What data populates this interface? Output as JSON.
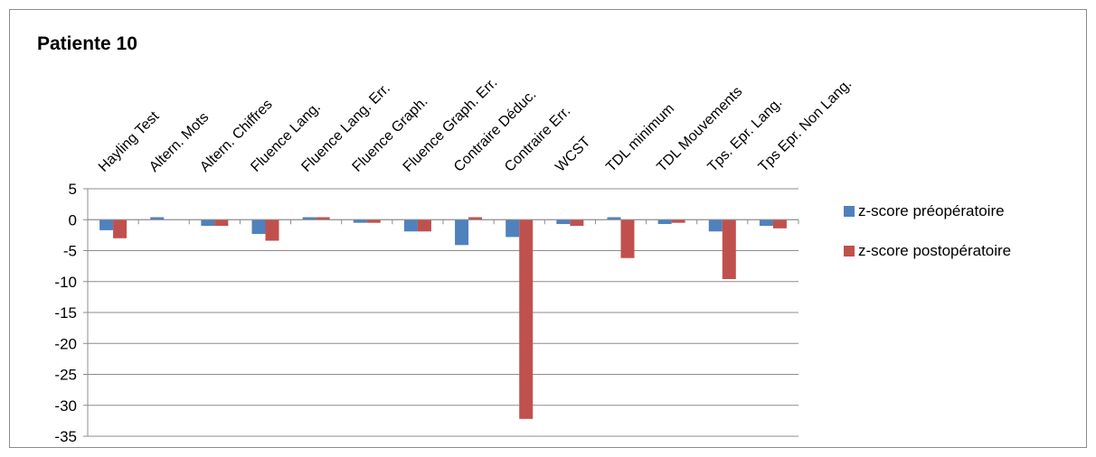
{
  "chart_data": {
    "type": "bar",
    "title": "Patiente 10",
    "xlabel": "",
    "ylabel": "",
    "ylim": [
      -35,
      5
    ],
    "yticks": [
      5,
      0,
      -5,
      -10,
      -15,
      -20,
      -25,
      -30,
      -35
    ],
    "grid": true,
    "legend_position": "right",
    "categories": [
      "Hayling Test",
      "Altern. Mots",
      "Altern. Chiffres",
      "Fluence Lang.",
      "Fluence Lang. Err.",
      "Fluence Graph.",
      "Fluence Graph. Err.",
      "Contraire Déduc.",
      "Contraire Err.",
      "WCST",
      "TDL minimum",
      "TDL Mouvements",
      "Tps. Epr. Lang.",
      "Tps Epr. Non Lang."
    ],
    "series": [
      {
        "name": "z-score préopératoire",
        "color": "#4F81BD",
        "values": [
          -1.7,
          0.4,
          -1.0,
          -2.3,
          0.4,
          -0.5,
          -1.9,
          -4.1,
          -2.8,
          -0.7,
          0.4,
          -0.7,
          -1.9,
          -1.0
        ]
      },
      {
        "name": "z-score postopératoire",
        "color": "#C0504D",
        "values": [
          -3.0,
          0.0,
          -1.0,
          -3.4,
          0.4,
          -0.5,
          -1.9,
          0.4,
          -32.2,
          -1.0,
          -6.2,
          -0.5,
          -9.6,
          -1.4
        ]
      }
    ]
  }
}
